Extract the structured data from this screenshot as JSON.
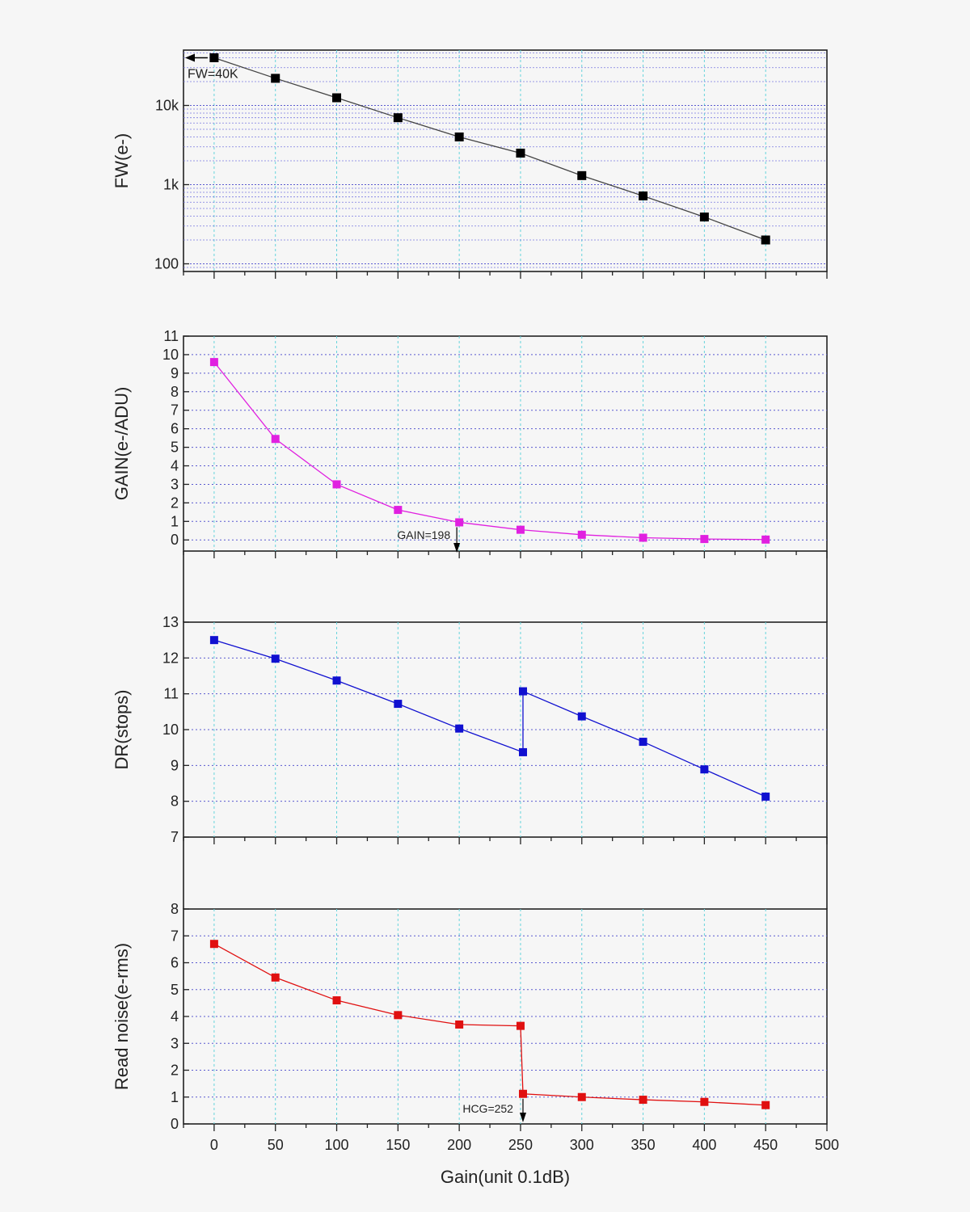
{
  "chart_data": [
    {
      "type": "line",
      "id": "fw",
      "ylabel": "FW(e-)",
      "yscale": "log",
      "ylim": [
        80,
        50000
      ],
      "yticks": [
        100,
        1000,
        10000
      ],
      "ytick_labels": [
        "100",
        "1k",
        "10k"
      ],
      "x": [
        0,
        50,
        100,
        150,
        200,
        250,
        300,
        350,
        400,
        450
      ],
      "values": [
        40000,
        22000,
        12500,
        7000,
        4000,
        2500,
        1300,
        720,
        390,
        200
      ],
      "color": "#000000",
      "annotation": {
        "text": "FW=40K",
        "x": 0,
        "y": 40000
      }
    },
    {
      "type": "line",
      "id": "gain",
      "ylabel": "GAIN(e-/ADU)",
      "yscale": "linear",
      "ylim": [
        -0.6,
        11
      ],
      "yticks": [
        0,
        1,
        2,
        3,
        4,
        5,
        6,
        7,
        8,
        9,
        10,
        11
      ],
      "ytick_labels": [
        "0",
        "1",
        "2",
        "3",
        "4",
        "5",
        "6",
        "7",
        "8",
        "9",
        "10",
        "11"
      ],
      "x": [
        0,
        50,
        100,
        150,
        200,
        250,
        300,
        350,
        400,
        450
      ],
      "values": [
        9.6,
        5.45,
        3.0,
        1.62,
        0.95,
        0.55,
        0.28,
        0.12,
        0.05,
        0.02
      ],
      "color": "#e020e0",
      "annotation": {
        "text": "GAIN=198",
        "x": 198
      }
    },
    {
      "type": "line",
      "id": "dr",
      "ylabel": "DR(stops)",
      "yscale": "linear",
      "ylim": [
        7,
        13
      ],
      "yticks": [
        7,
        8,
        9,
        10,
        11,
        12,
        13
      ],
      "ytick_labels": [
        "7",
        "8",
        "9",
        "10",
        "11",
        "12",
        "13"
      ],
      "x": [
        0,
        50,
        100,
        150,
        200,
        252,
        252,
        300,
        350,
        400,
        450
      ],
      "values": [
        12.5,
        11.98,
        11.37,
        10.72,
        10.03,
        9.37,
        11.07,
        10.37,
        9.66,
        8.89,
        8.13
      ],
      "color": "#1010d0"
    },
    {
      "type": "line",
      "id": "rn",
      "ylabel": "Read noise(e-rms)",
      "yscale": "linear",
      "ylim": [
        0,
        8
      ],
      "yticks": [
        0,
        1,
        2,
        3,
        4,
        5,
        6,
        7,
        8
      ],
      "ytick_labels": [
        "0",
        "1",
        "2",
        "3",
        "4",
        "5",
        "6",
        "7",
        "8"
      ],
      "x": [
        0,
        50,
        100,
        150,
        200,
        250,
        252,
        300,
        350,
        400,
        450
      ],
      "values": [
        6.7,
        5.45,
        4.6,
        4.05,
        3.7,
        3.65,
        1.12,
        1.0,
        0.9,
        0.82,
        0.7
      ],
      "color": "#e01010",
      "annotation": {
        "text": "HCG=252",
        "x": 252
      }
    }
  ],
  "xaxis": {
    "label": "Gain(unit 0.1dB)",
    "range": [
      -25,
      500
    ],
    "ticks": [
      0,
      50,
      100,
      150,
      200,
      250,
      300,
      350,
      400,
      450,
      500
    ],
    "tick_labels": [
      "0",
      "50",
      "100",
      "150",
      "200",
      "250",
      "300",
      "350",
      "400",
      "450",
      "500"
    ]
  }
}
